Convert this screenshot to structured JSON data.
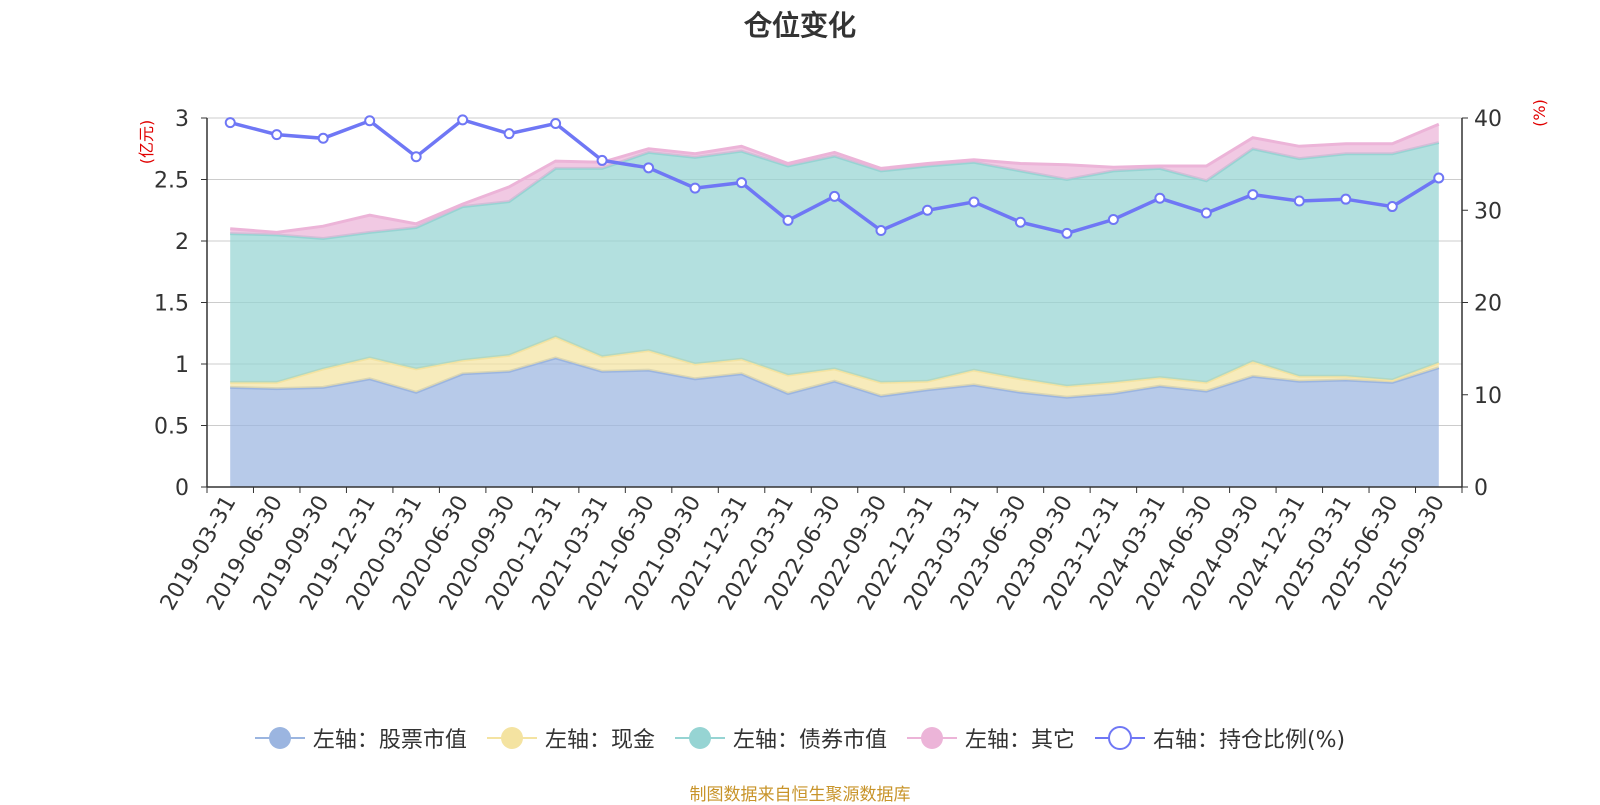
{
  "chart_data": {
    "type": "area",
    "title": "仓位变化",
    "y_left_unit": "(亿元)",
    "y_right_unit": "(%)",
    "y_left_ticks": [
      "0",
      "0.5",
      "1",
      "1.5",
      "2",
      "2.5",
      "3"
    ],
    "y_right_ticks": [
      "0",
      "10",
      "20",
      "30",
      "40"
    ],
    "ylim_left": [
      0,
      3
    ],
    "ylim_right": [
      0,
      40
    ],
    "categories": [
      "2019-03-31",
      "2019-06-30",
      "2019-09-30",
      "2019-12-31",
      "2020-03-31",
      "2020-06-30",
      "2020-09-30",
      "2020-12-31",
      "2021-03-31",
      "2021-06-30",
      "2021-09-30",
      "2021-12-31",
      "2022-03-31",
      "2022-06-30",
      "2022-09-30",
      "2022-12-31",
      "2023-03-31",
      "2023-06-30",
      "2023-09-30",
      "2023-12-31",
      "2024-03-31",
      "2024-06-30",
      "2024-09-30",
      "2024-12-31",
      "2025-03-31",
      "2025-06-30",
      "2025-09-30"
    ],
    "series": [
      {
        "name": "左轴：股票市值",
        "axis": "left",
        "type": "stacked-area",
        "color": "#9bb5e0",
        "values": [
          0.81,
          0.8,
          0.81,
          0.88,
          0.77,
          0.92,
          0.94,
          1.05,
          0.94,
          0.95,
          0.88,
          0.92,
          0.76,
          0.86,
          0.74,
          0.79,
          0.83,
          0.77,
          0.73,
          0.76,
          0.82,
          0.78,
          0.9,
          0.86,
          0.87,
          0.85,
          0.97
        ]
      },
      {
        "name": "左轴：现金",
        "axis": "left",
        "type": "stacked-area",
        "color": "#f4e3a1",
        "values": [
          0.04,
          0.05,
          0.15,
          0.17,
          0.19,
          0.11,
          0.13,
          0.17,
          0.12,
          0.16,
          0.12,
          0.12,
          0.15,
          0.1,
          0.11,
          0.07,
          0.12,
          0.11,
          0.09,
          0.09,
          0.07,
          0.07,
          0.12,
          0.04,
          0.03,
          0.02,
          0.04
        ]
      },
      {
        "name": "左轴：债券市值",
        "axis": "left",
        "type": "stacked-area",
        "color": "#96d4d3",
        "values": [
          1.21,
          1.2,
          1.06,
          1.02,
          1.15,
          1.25,
          1.25,
          1.37,
          1.53,
          1.61,
          1.68,
          1.69,
          1.7,
          1.73,
          1.72,
          1.75,
          1.69,
          1.69,
          1.68,
          1.72,
          1.7,
          1.64,
          1.73,
          1.77,
          1.81,
          1.84,
          1.79
        ]
      },
      {
        "name": "左轴：其它",
        "axis": "left",
        "type": "stacked-area",
        "color": "#ecb4d8",
        "values": [
          0.04,
          0.02,
          0.1,
          0.14,
          0.03,
          0.02,
          0.12,
          0.06,
          0.05,
          0.03,
          0.03,
          0.04,
          0.02,
          0.03,
          0.02,
          0.02,
          0.02,
          0.06,
          0.12,
          0.03,
          0.02,
          0.12,
          0.09,
          0.1,
          0.08,
          0.08,
          0.15
        ]
      },
      {
        "name": "右轴：持仓比例(%)",
        "axis": "right",
        "type": "line",
        "color": "#6f77f5",
        "values": [
          39.5,
          38.2,
          37.8,
          39.7,
          35.8,
          39.8,
          38.3,
          39.4,
          35.4,
          34.6,
          32.4,
          33.0,
          28.9,
          31.5,
          27.8,
          30.0,
          30.9,
          28.7,
          27.5,
          29.0,
          31.3,
          29.7,
          31.7,
          31.0,
          31.2,
          30.4,
          33.5
        ]
      }
    ]
  },
  "source_note": "制图数据来自恒生聚源数据库"
}
